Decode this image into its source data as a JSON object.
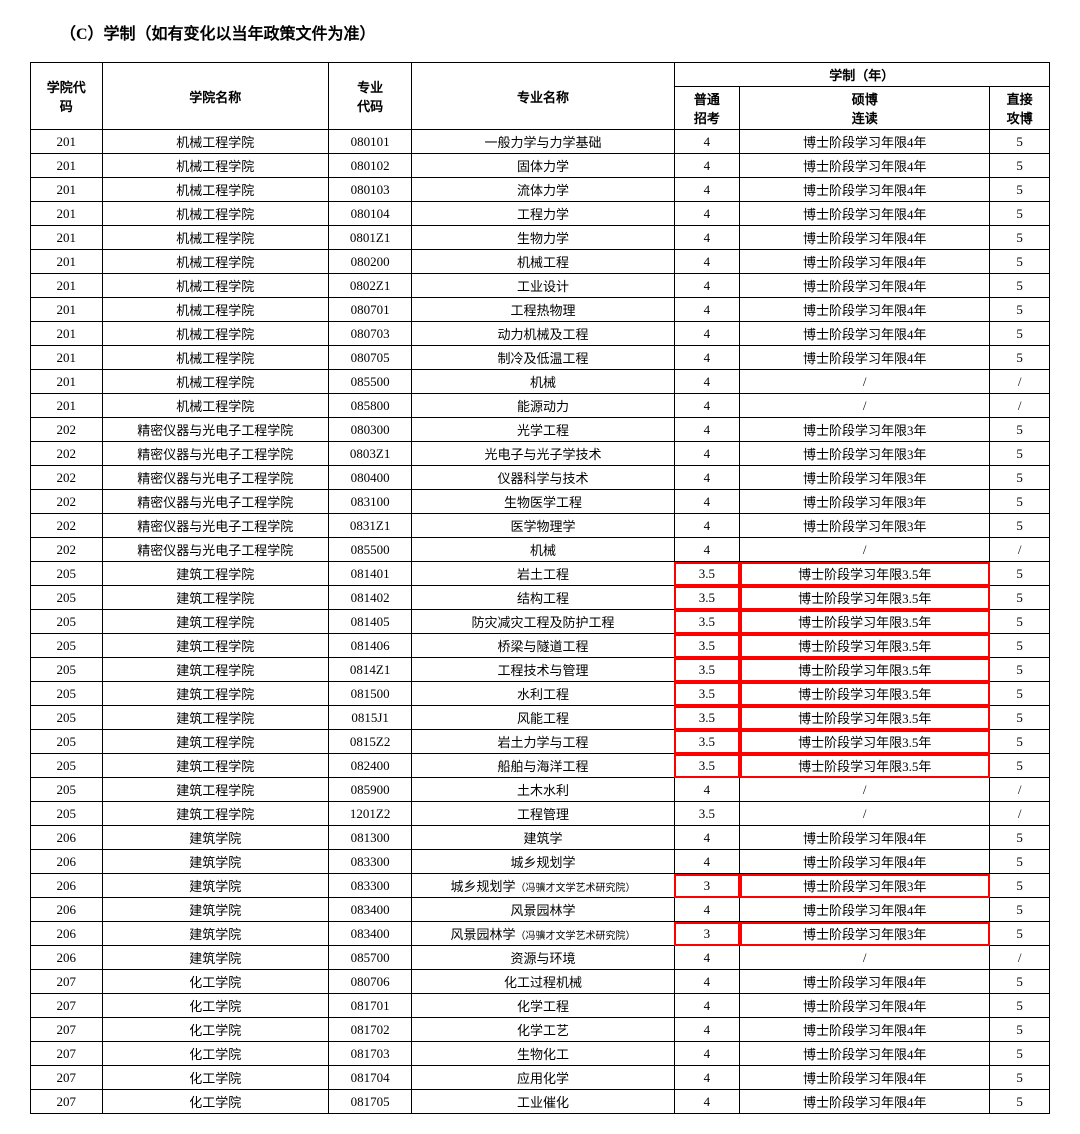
{
  "title": "（C）学制（如有变化以当年政策文件为准）",
  "headers": {
    "school_code": "学院代\n码",
    "school_name": "学院名称",
    "major_code": "专业\n代码",
    "major_name": "专业名称",
    "study_group": "学制（年）",
    "normal_exam": "普通\n招考",
    "shuo_bo": "硕博\n连读",
    "direct": "直接\n攻博"
  },
  "rows": [
    {
      "c": "201",
      "s": "机械工程学院",
      "mc": "080101",
      "mn": "一般力学与力学基础",
      "e": "4",
      "sb": "博士阶段学习年限4年",
      "d": "5"
    },
    {
      "c": "201",
      "s": "机械工程学院",
      "mc": "080102",
      "mn": "固体力学",
      "e": "4",
      "sb": "博士阶段学习年限4年",
      "d": "5"
    },
    {
      "c": "201",
      "s": "机械工程学院",
      "mc": "080103",
      "mn": "流体力学",
      "e": "4",
      "sb": "博士阶段学习年限4年",
      "d": "5"
    },
    {
      "c": "201",
      "s": "机械工程学院",
      "mc": "080104",
      "mn": "工程力学",
      "e": "4",
      "sb": "博士阶段学习年限4年",
      "d": "5"
    },
    {
      "c": "201",
      "s": "机械工程学院",
      "mc": "0801Z1",
      "mn": "生物力学",
      "e": "4",
      "sb": "博士阶段学习年限4年",
      "d": "5"
    },
    {
      "c": "201",
      "s": "机械工程学院",
      "mc": "080200",
      "mn": "机械工程",
      "e": "4",
      "sb": "博士阶段学习年限4年",
      "d": "5"
    },
    {
      "c": "201",
      "s": "机械工程学院",
      "mc": "0802Z1",
      "mn": "工业设计",
      "e": "4",
      "sb": "博士阶段学习年限4年",
      "d": "5"
    },
    {
      "c": "201",
      "s": "机械工程学院",
      "mc": "080701",
      "mn": "工程热物理",
      "e": "4",
      "sb": "博士阶段学习年限4年",
      "d": "5"
    },
    {
      "c": "201",
      "s": "机械工程学院",
      "mc": "080703",
      "mn": "动力机械及工程",
      "e": "4",
      "sb": "博士阶段学习年限4年",
      "d": "5"
    },
    {
      "c": "201",
      "s": "机械工程学院",
      "mc": "080705",
      "mn": "制冷及低温工程",
      "e": "4",
      "sb": "博士阶段学习年限4年",
      "d": "5"
    },
    {
      "c": "201",
      "s": "机械工程学院",
      "mc": "085500",
      "mn": "机械",
      "e": "4",
      "sb": "/",
      "d": "/"
    },
    {
      "c": "201",
      "s": "机械工程学院",
      "mc": "085800",
      "mn": "能源动力",
      "e": "4",
      "sb": "/",
      "d": "/"
    },
    {
      "c": "202",
      "s": "精密仪器与光电子工程学院",
      "mc": "080300",
      "mn": "光学工程",
      "e": "4",
      "sb": "博士阶段学习年限3年",
      "d": "5"
    },
    {
      "c": "202",
      "s": "精密仪器与光电子工程学院",
      "mc": "0803Z1",
      "mn": "光电子与光子学技术",
      "e": "4",
      "sb": "博士阶段学习年限3年",
      "d": "5"
    },
    {
      "c": "202",
      "s": "精密仪器与光电子工程学院",
      "mc": "080400",
      "mn": "仪器科学与技术",
      "e": "4",
      "sb": "博士阶段学习年限3年",
      "d": "5"
    },
    {
      "c": "202",
      "s": "精密仪器与光电子工程学院",
      "mc": "083100",
      "mn": "生物医学工程",
      "e": "4",
      "sb": "博士阶段学习年限3年",
      "d": "5"
    },
    {
      "c": "202",
      "s": "精密仪器与光电子工程学院",
      "mc": "0831Z1",
      "mn": "医学物理学",
      "e": "4",
      "sb": "博士阶段学习年限3年",
      "d": "5"
    },
    {
      "c": "202",
      "s": "精密仪器与光电子工程学院",
      "mc": "085500",
      "mn": "机械",
      "e": "4",
      "sb": "/",
      "d": "/"
    },
    {
      "c": "205",
      "s": "建筑工程学院",
      "mc": "081401",
      "mn": "岩土工程",
      "e": "3.5",
      "sb": "博士阶段学习年限3.5年",
      "d": "5",
      "hl": true
    },
    {
      "c": "205",
      "s": "建筑工程学院",
      "mc": "081402",
      "mn": "结构工程",
      "e": "3.5",
      "sb": "博士阶段学习年限3.5年",
      "d": "5",
      "hl": true
    },
    {
      "c": "205",
      "s": "建筑工程学院",
      "mc": "081405",
      "mn": "防灾减灾工程及防护工程",
      "e": "3.5",
      "sb": "博士阶段学习年限3.5年",
      "d": "5",
      "hl": true
    },
    {
      "c": "205",
      "s": "建筑工程学院",
      "mc": "081406",
      "mn": "桥梁与隧道工程",
      "e": "3.5",
      "sb": "博士阶段学习年限3.5年",
      "d": "5",
      "hl": true
    },
    {
      "c": "205",
      "s": "建筑工程学院",
      "mc": "0814Z1",
      "mn": "工程技术与管理",
      "e": "3.5",
      "sb": "博士阶段学习年限3.5年",
      "d": "5",
      "hl": true
    },
    {
      "c": "205",
      "s": "建筑工程学院",
      "mc": "081500",
      "mn": "水利工程",
      "e": "3.5",
      "sb": "博士阶段学习年限3.5年",
      "d": "5",
      "hl": true
    },
    {
      "c": "205",
      "s": "建筑工程学院",
      "mc": "0815J1",
      "mn": "风能工程",
      "e": "3.5",
      "sb": "博士阶段学习年限3.5年",
      "d": "5",
      "hl": true
    },
    {
      "c": "205",
      "s": "建筑工程学院",
      "mc": "0815Z2",
      "mn": "岩土力学与工程",
      "e": "3.5",
      "sb": "博士阶段学习年限3.5年",
      "d": "5",
      "hl": true
    },
    {
      "c": "205",
      "s": "建筑工程学院",
      "mc": "082400",
      "mn": "船舶与海洋工程",
      "e": "3.5",
      "sb": "博士阶段学习年限3.5年",
      "d": "5",
      "hl": true
    },
    {
      "c": "205",
      "s": "建筑工程学院",
      "mc": "085900",
      "mn": "土木水利",
      "e": "4",
      "sb": "/",
      "d": "/"
    },
    {
      "c": "205",
      "s": "建筑工程学院",
      "mc": "1201Z2",
      "mn": "工程管理",
      "e": "3.5",
      "sb": "/",
      "d": "/"
    },
    {
      "c": "206",
      "s": "建筑学院",
      "mc": "081300",
      "mn": "建筑学",
      "e": "4",
      "sb": "博士阶段学习年限4年",
      "d": "5"
    },
    {
      "c": "206",
      "s": "建筑学院",
      "mc": "083300",
      "mn": "城乡规划学",
      "e": "4",
      "sb": "博士阶段学习年限4年",
      "d": "5"
    },
    {
      "c": "206",
      "s": "建筑学院",
      "mc": "083300",
      "mn": "城乡规划学（冯骥才文学艺术研究院）",
      "note": true,
      "e": "3",
      "sb": "博士阶段学习年限3年",
      "d": "5",
      "hl": true
    },
    {
      "c": "206",
      "s": "建筑学院",
      "mc": "083400",
      "mn": "风景园林学",
      "e": "4",
      "sb": "博士阶段学习年限4年",
      "d": "5"
    },
    {
      "c": "206",
      "s": "建筑学院",
      "mc": "083400",
      "mn": "风景园林学（冯骥才文学艺术研究院）",
      "note": true,
      "e": "3",
      "sb": "博士阶段学习年限3年",
      "d": "5",
      "hl": true
    },
    {
      "c": "206",
      "s": "建筑学院",
      "mc": "085700",
      "mn": "资源与环境",
      "e": "4",
      "sb": "/",
      "d": "/"
    },
    {
      "c": "207",
      "s": "化工学院",
      "mc": "080706",
      "mn": "化工过程机械",
      "e": "4",
      "sb": "博士阶段学习年限4年",
      "d": "5"
    },
    {
      "c": "207",
      "s": "化工学院",
      "mc": "081701",
      "mn": "化学工程",
      "e": "4",
      "sb": "博士阶段学习年限4年",
      "d": "5"
    },
    {
      "c": "207",
      "s": "化工学院",
      "mc": "081702",
      "mn": "化学工艺",
      "e": "4",
      "sb": "博士阶段学习年限4年",
      "d": "5"
    },
    {
      "c": "207",
      "s": "化工学院",
      "mc": "081703",
      "mn": "生物化工",
      "e": "4",
      "sb": "博士阶段学习年限4年",
      "d": "5"
    },
    {
      "c": "207",
      "s": "化工学院",
      "mc": "081704",
      "mn": "应用化学",
      "e": "4",
      "sb": "博士阶段学习年限4年",
      "d": "5"
    },
    {
      "c": "207",
      "s": "化工学院",
      "mc": "081705",
      "mn": "工业催化",
      "e": "4",
      "sb": "博士阶段学习年限4年",
      "d": "5"
    }
  ]
}
